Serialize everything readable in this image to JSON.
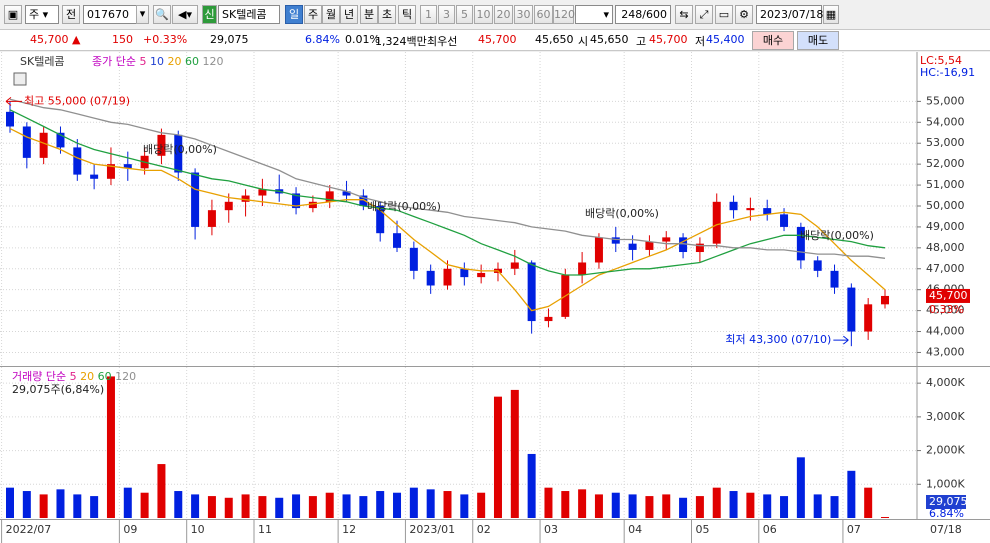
{
  "toolbar": {
    "market": "주",
    "prefix": "전",
    "code": "017670",
    "badge": "신",
    "name": "SK텔레콤",
    "periods": [
      "일",
      "주",
      "월",
      "년",
      "분",
      "초",
      "틱"
    ],
    "intervals": [
      "1",
      "3",
      "5",
      "10",
      "20",
      "30",
      "60",
      "120"
    ],
    "count": "248/600",
    "date": "2023/07/18"
  },
  "info_bar": {
    "price": "45,700 ▲",
    "change": "150",
    "change_pct": "+0.33%",
    "volume": "29,075",
    "volume_pct": "6.84%",
    "turnover_pct": "0.01%",
    "amount": "1,324백만",
    "best_label": "최우선",
    "ask": "45,700",
    "bid": "45,650",
    "open_label": "시",
    "open": "45,650",
    "high_label": "고",
    "high": "45,700",
    "low_label": "저",
    "low": "45,400",
    "buy": "매수",
    "sell": "매도"
  },
  "chart_data": [
    {
      "type": "candlestick",
      "title": "SK텔레콤",
      "legend": {
        "label": "종가 단순",
        "items": [
          {
            "name": "5",
            "color": "#e0218a"
          },
          {
            "name": "10",
            "color": "#2040d0"
          },
          {
            "name": "20",
            "color": "#e8a000"
          },
          {
            "name": "60",
            "color": "#20a040"
          },
          {
            "name": "120",
            "color": "#909090"
          }
        ]
      },
      "categories": [
        "2022/07",
        null,
        null,
        null,
        null,
        null,
        null,
        "09",
        null,
        null,
        null,
        "10",
        null,
        null,
        null,
        "11",
        null,
        null,
        null,
        null,
        "12",
        null,
        null,
        null,
        "2023/01",
        null,
        null,
        null,
        "02",
        null,
        null,
        null,
        "03",
        null,
        null,
        null,
        null,
        "04",
        null,
        null,
        null,
        "05",
        null,
        null,
        null,
        "06",
        null,
        null,
        null,
        null,
        "07",
        null,
        null
      ],
      "open": [
        54500,
        53800,
        52300,
        53500,
        52800,
        51500,
        51300,
        52000,
        51800,
        52400,
        53400,
        51600,
        49000,
        49800,
        50200,
        50500,
        50800,
        50600,
        49900,
        50200,
        50700,
        50500,
        50000,
        48700,
        48000,
        46900,
        46200,
        47000,
        46600,
        46800,
        47000,
        47300,
        44500,
        44700,
        46700,
        47300,
        48500,
        48200,
        47900,
        48300,
        48500,
        47800,
        48200,
        50200,
        49800,
        49900,
        49600,
        49000,
        47400,
        46900,
        46100,
        44000,
        45300
      ],
      "high": [
        55000,
        54000,
        53800,
        53800,
        53200,
        52000,
        52800,
        52600,
        52800,
        53700,
        53600,
        51800,
        50300,
        50600,
        50800,
        51300,
        51500,
        50900,
        50500,
        51000,
        51200,
        50800,
        50200,
        49300,
        48300,
        47200,
        47400,
        47300,
        47200,
        47300,
        47900,
        47400,
        45100,
        47000,
        47800,
        48700,
        49000,
        48600,
        48600,
        48800,
        48700,
        48500,
        50600,
        50500,
        50400,
        50300,
        49900,
        49200,
        47600,
        47200,
        46300,
        45600,
        46000
      ],
      "low": [
        53500,
        51800,
        52000,
        52500,
        51200,
        50800,
        51000,
        51200,
        51500,
        52000,
        51200,
        48400,
        48600,
        49200,
        49500,
        50000,
        50200,
        49600,
        49700,
        49900,
        50200,
        49800,
        48300,
        47800,
        46500,
        45800,
        46000,
        46200,
        46300,
        46400,
        46700,
        43900,
        44200,
        44600,
        46300,
        47000,
        47800,
        47400,
        47600,
        47900,
        47500,
        47300,
        48000,
        49400,
        49300,
        49300,
        48800,
        47000,
        46600,
        45800,
        43300,
        43600,
        45100
      ],
      "close": [
        53800,
        52300,
        53500,
        52800,
        51500,
        51300,
        52000,
        51800,
        52400,
        53400,
        51600,
        49000,
        49800,
        50200,
        50500,
        50800,
        50600,
        49900,
        50200,
        50700,
        50500,
        50000,
        48700,
        48000,
        46900,
        46200,
        47000,
        46600,
        46800,
        47000,
        47300,
        44500,
        44700,
        46700,
        47300,
        48500,
        48200,
        47900,
        48300,
        48500,
        47800,
        48200,
        50200,
        49800,
        49900,
        49600,
        49000,
        47400,
        46900,
        46100,
        44000,
        45300,
        45700
      ],
      "up_color": "#e00000",
      "down_color": "#0020e0",
      "lines": [
        {
          "color": "#e8a000",
          "values": [
            53700,
            53300,
            53000,
            52700,
            52300,
            52000,
            51900,
            51800,
            51700,
            51700,
            51300,
            50800,
            50600,
            50400,
            50300,
            50200,
            50100,
            50000,
            50100,
            50200,
            50300,
            50300,
            49800,
            49100,
            48400,
            47800,
            47200,
            47000,
            46900,
            46900,
            46000,
            45000,
            45200,
            45700,
            46200,
            46700,
            47000,
            47300,
            47600,
            47900,
            48300,
            48700,
            49100,
            49300,
            49500,
            49600,
            49700,
            49600,
            49000,
            48200,
            47400,
            46700,
            46000
          ]
        },
        {
          "color": "#20a040",
          "values": [
            54600,
            54200,
            53800,
            53400,
            53000,
            52700,
            52500,
            52300,
            52100,
            51900,
            51700,
            51500,
            51300,
            51200,
            51000,
            50800,
            50700,
            50500,
            50400,
            50300,
            50200,
            50000,
            49900,
            49800,
            49500,
            49200,
            48900,
            48600,
            48200,
            47900,
            47600,
            47200,
            46900,
            46700,
            46700,
            46800,
            46900,
            47000,
            47000,
            47100,
            47200,
            47300,
            47600,
            47900,
            48200,
            48400,
            48600,
            48600,
            48500,
            48400,
            48300,
            48100,
            48000
          ]
        },
        {
          "color": "#909090",
          "values": [
            55100,
            54900,
            54700,
            54600,
            54400,
            54200,
            54000,
            53900,
            53700,
            53500,
            53400,
            53200,
            52900,
            52600,
            52300,
            52000,
            51700,
            51300,
            51100,
            50900,
            50700,
            50400,
            50200,
            50000,
            49900,
            49800,
            49700,
            49500,
            49400,
            49300,
            49200,
            49000,
            48900,
            48800,
            48600,
            48500,
            48400,
            48400,
            48300,
            48200,
            48200,
            48100,
            48100,
            48000,
            48000,
            47900,
            47900,
            47800,
            47700,
            47700,
            47600,
            47600,
            47500
          ]
        }
      ],
      "ylim": [
        42400,
        56500
      ],
      "yticks": [
        {
          "value": 43000,
          "label": "43,000"
        },
        {
          "value": 44000,
          "label": "44,000"
        },
        {
          "value": 45000,
          "label": "45,000"
        },
        {
          "value": 46000,
          "label": "46,000"
        },
        {
          "value": 47000,
          "label": "47,000"
        },
        {
          "value": 48000,
          "label": "48,000"
        },
        {
          "value": 49000,
          "label": "49,000"
        },
        {
          "value": 50000,
          "label": "50,000"
        },
        {
          "value": 51000,
          "label": "51,000"
        },
        {
          "value": 52000,
          "label": "52,000"
        },
        {
          "value": 53000,
          "label": "53,000"
        },
        {
          "value": 54000,
          "label": "54,000"
        },
        {
          "value": 55000,
          "label": "55,000"
        }
      ],
      "grid": true,
      "indicators": {
        "lc": "LC:5,54",
        "hc": "HC:-16,91"
      },
      "last_price_label": "45,700",
      "last_change_label": "0.33%",
      "annotations": {
        "high": "최고 55,000 (07/19)",
        "low": "최저 43,300 (07/10)",
        "dividends": [
          "배당락(0,00%)",
          "배당락(0,00%)",
          "배당락(0,00%)",
          "배당락(0,00%)"
        ]
      },
      "end_date_label": "07/18"
    },
    {
      "type": "bar",
      "legend": {
        "label": "거래량 단순",
        "items": [
          {
            "name": "5",
            "color": "#e0218a"
          },
          {
            "name": "20",
            "color": "#e8a000"
          },
          {
            "name": "60",
            "color": "#20a040"
          },
          {
            "name": "120",
            "color": "#909090"
          }
        ]
      },
      "values": [
        900,
        800,
        700,
        850,
        700,
        650,
        4200,
        900,
        750,
        1600,
        800,
        700,
        650,
        600,
        700,
        650,
        600,
        700,
        650,
        750,
        700,
        650,
        800,
        750,
        900,
        850,
        800,
        700,
        750,
        3600,
        3800,
        1900,
        900,
        800,
        850,
        700,
        750,
        700,
        650,
        700,
        600,
        650,
        900,
        800,
        750,
        700,
        650,
        1800,
        700,
        650,
        1400,
        900,
        29.075
      ],
      "ylim": [
        0,
        4450
      ],
      "yticks": [
        {
          "value": 1000,
          "label": "1,000K"
        },
        {
          "value": 2000,
          "label": "2,000K"
        },
        {
          "value": 3000,
          "label": "3,000K"
        },
        {
          "value": 4000,
          "label": "4,000K"
        }
      ],
      "grid": true,
      "summary": "29,075주(6,84%)",
      "last_volume_label": "29,075",
      "last_pct_label": "6.84%"
    }
  ]
}
